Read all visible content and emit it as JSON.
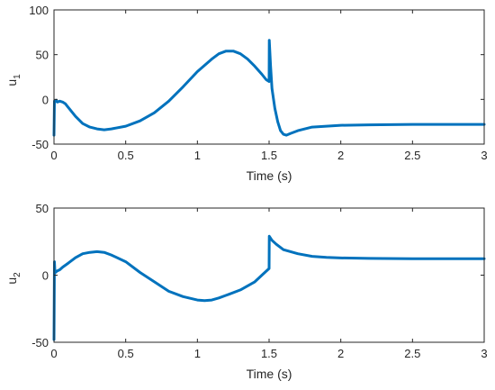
{
  "chart_data": [
    {
      "type": "line",
      "title": "",
      "xlabel": "Time (s)",
      "ylabel": "u",
      "ylabel_sub": "1",
      "xlim": [
        0,
        3
      ],
      "ylim": [
        -50,
        100
      ],
      "xticks": [
        0,
        0.5,
        1,
        1.5,
        2,
        2.5,
        3
      ],
      "xtick_labels": [
        "0",
        "0.5",
        "1",
        "1.5",
        "2",
        "2.5",
        "3"
      ],
      "yticks": [
        -50,
        0,
        50,
        100
      ],
      "ytick_labels": [
        "-50",
        "0",
        "50",
        "100"
      ],
      "grid": false,
      "color": "#0072BD",
      "series": [
        {
          "x": [
            0,
            0.003,
            0.008,
            0.015,
            0.025,
            0.04,
            0.06,
            0.08,
            0.1,
            0.15,
            0.2,
            0.25,
            0.3,
            0.35,
            0.4,
            0.5,
            0.6,
            0.7,
            0.8,
            0.9,
            1.0,
            1.1,
            1.15,
            1.2,
            1.25,
            1.3,
            1.35,
            1.4,
            1.45,
            1.48,
            1.5,
            1.501,
            1.51,
            1.52,
            1.54,
            1.56,
            1.58,
            1.6,
            1.62,
            1.65,
            1.7,
            1.75,
            1.8,
            1.9,
            2.0,
            2.2,
            2.5,
            2.8,
            3.0
          ],
          "y": [
            -40,
            -2,
            -3,
            -1,
            -3,
            -2,
            -3,
            -5,
            -9,
            -19,
            -27,
            -31,
            -33,
            -34,
            -33,
            -30,
            -24,
            -15,
            -2,
            14,
            31,
            45,
            51,
            54,
            54,
            51,
            45,
            37,
            28,
            22,
            20,
            66,
            38,
            12,
            -10,
            -25,
            -35,
            -39,
            -40,
            -38,
            -35,
            -33,
            -31,
            -30,
            -29,
            -28.5,
            -28,
            -28,
            -28
          ]
        }
      ]
    },
    {
      "type": "line",
      "title": "",
      "xlabel": "Time (s)",
      "ylabel": "u",
      "ylabel_sub": "2",
      "xlim": [
        0,
        3
      ],
      "ylim": [
        -50,
        50
      ],
      "xticks": [
        0,
        0.5,
        1,
        1.5,
        2,
        2.5,
        3
      ],
      "xtick_labels": [
        "0",
        "0.5",
        "1",
        "1.5",
        "2",
        "2.5",
        "3"
      ],
      "yticks": [
        -50,
        0,
        50
      ],
      "ytick_labels": [
        "-50",
        "0",
        "50"
      ],
      "grid": false,
      "color": "#0072BD",
      "series": [
        {
          "x": [
            0,
            0.003,
            0.006,
            0.01,
            0.02,
            0.04,
            0.06,
            0.1,
            0.15,
            0.2,
            0.25,
            0.3,
            0.35,
            0.4,
            0.5,
            0.6,
            0.7,
            0.8,
            0.9,
            1.0,
            1.05,
            1.1,
            1.15,
            1.2,
            1.3,
            1.4,
            1.45,
            1.5,
            1.501,
            1.52,
            1.55,
            1.6,
            1.7,
            1.8,
            1.9,
            2.0,
            2.2,
            2.5,
            2.8,
            3.0
          ],
          "y": [
            -48,
            10,
            3,
            2,
            3,
            4,
            6,
            9,
            13,
            16,
            17,
            17.5,
            17,
            15,
            10,
            2,
            -5,
            -12,
            -16,
            -18.5,
            -19,
            -18.5,
            -17,
            -15,
            -11,
            -5,
            0,
            5,
            29,
            26,
            23,
            19,
            16,
            14,
            13.2,
            12.8,
            12.5,
            12.3,
            12.2,
            12.2
          ]
        }
      ]
    }
  ]
}
